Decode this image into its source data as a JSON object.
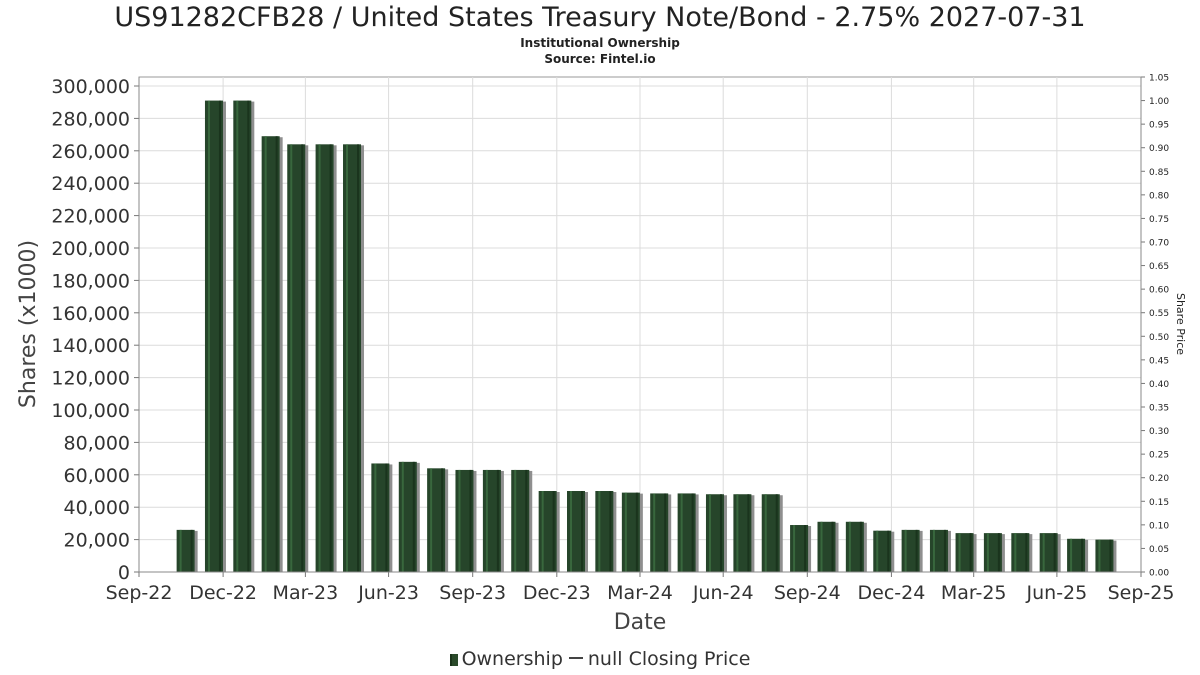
{
  "chart_data": {
    "type": "bar",
    "title": "US91282CFB28 / United States Treasury Note/Bond - 2.75% 2027-07-31",
    "subtitle": "Institutional Ownership",
    "source": "Source: Fintel.io",
    "xlabel": "Date",
    "ylabel": "Shares (x1000)",
    "y2label": "Share Price",
    "xlim": [
      "2022-09-30",
      "2025-09-30"
    ],
    "ylim": [
      0,
      300000
    ],
    "y2lim": [
      0,
      1.05
    ],
    "grid": true,
    "legend_position": "bottom-center",
    "x_ticks": [
      {
        "date": "2022-09-30",
        "label": "Sep-22"
      },
      {
        "date": "2022-12-31",
        "label": "Dec-22"
      },
      {
        "date": "2023-03-31",
        "label": "Mar-23"
      },
      {
        "date": "2023-06-30",
        "label": "Jun-23"
      },
      {
        "date": "2023-09-30",
        "label": "Sep-23"
      },
      {
        "date": "2023-12-31",
        "label": "Dec-23"
      },
      {
        "date": "2024-03-31",
        "label": "Mar-24"
      },
      {
        "date": "2024-06-30",
        "label": "Jun-24"
      },
      {
        "date": "2024-09-30",
        "label": "Sep-24"
      },
      {
        "date": "2024-12-31",
        "label": "Dec-24"
      },
      {
        "date": "2025-03-31",
        "label": "Mar-25"
      },
      {
        "date": "2025-06-30",
        "label": "Jun-25"
      },
      {
        "date": "2025-09-30",
        "label": "Sep-25"
      }
    ],
    "y_ticks": [
      0,
      20000,
      40000,
      60000,
      80000,
      100000,
      120000,
      140000,
      160000,
      180000,
      200000,
      220000,
      240000,
      260000,
      280000,
      300000
    ],
    "y_tick_labels": [
      "0",
      "20,000",
      "40,000",
      "60,000",
      "80,000",
      "100,000",
      "120,000",
      "140,000",
      "160,000",
      "180,000",
      "200,000",
      "220,000",
      "240,000",
      "260,000",
      "280,000",
      "300,000"
    ],
    "y2_ticks": [
      0,
      0.05,
      0.1,
      0.15,
      0.2,
      0.25,
      0.3,
      0.35,
      0.4,
      0.45,
      0.5,
      0.55,
      0.6,
      0.65,
      0.7,
      0.75,
      0.8,
      0.85,
      0.9,
      0.95,
      1.0,
      1.05
    ],
    "y2_tick_labels": [
      "0.00",
      "0.05",
      "0.10",
      "0.15",
      "0.20",
      "0.25",
      "0.30",
      "0.35",
      "0.40",
      "0.45",
      "0.50",
      "0.55",
      "0.60",
      "0.65",
      "0.70",
      "0.75",
      "0.80",
      "0.85",
      "0.90",
      "0.95",
      "1.00",
      "1.05"
    ],
    "series": [
      {
        "name": "Ownership",
        "color": "#26452a",
        "x": [
          "2022-11-20",
          "2022-12-21",
          "2023-01-21",
          "2023-02-21",
          "2023-03-21",
          "2023-04-21",
          "2023-05-21",
          "2023-06-21",
          "2023-07-21",
          "2023-08-21",
          "2023-09-21",
          "2023-10-21",
          "2023-11-21",
          "2023-12-21",
          "2024-01-21",
          "2024-02-21",
          "2024-03-21",
          "2024-04-21",
          "2024-05-21",
          "2024-06-21",
          "2024-07-21",
          "2024-08-21",
          "2024-09-21",
          "2024-10-21",
          "2024-11-21",
          "2024-12-21",
          "2025-01-21",
          "2025-02-21",
          "2025-03-21",
          "2025-04-21",
          "2025-05-21",
          "2025-06-21",
          "2025-07-21",
          "2025-08-21"
        ],
        "values": [
          26000,
          291000,
          291000,
          269000,
          264000,
          264000,
          264000,
          67000,
          68000,
          64000,
          63000,
          63000,
          63000,
          50000,
          50000,
          50000,
          49000,
          48500,
          48500,
          48000,
          48000,
          48000,
          29000,
          31000,
          31000,
          25500,
          26000,
          26000,
          24000,
          24000,
          24000,
          24000,
          20500,
          20000
        ]
      },
      {
        "name": "null Closing Price",
        "color": "#444444",
        "values": []
      }
    ]
  }
}
